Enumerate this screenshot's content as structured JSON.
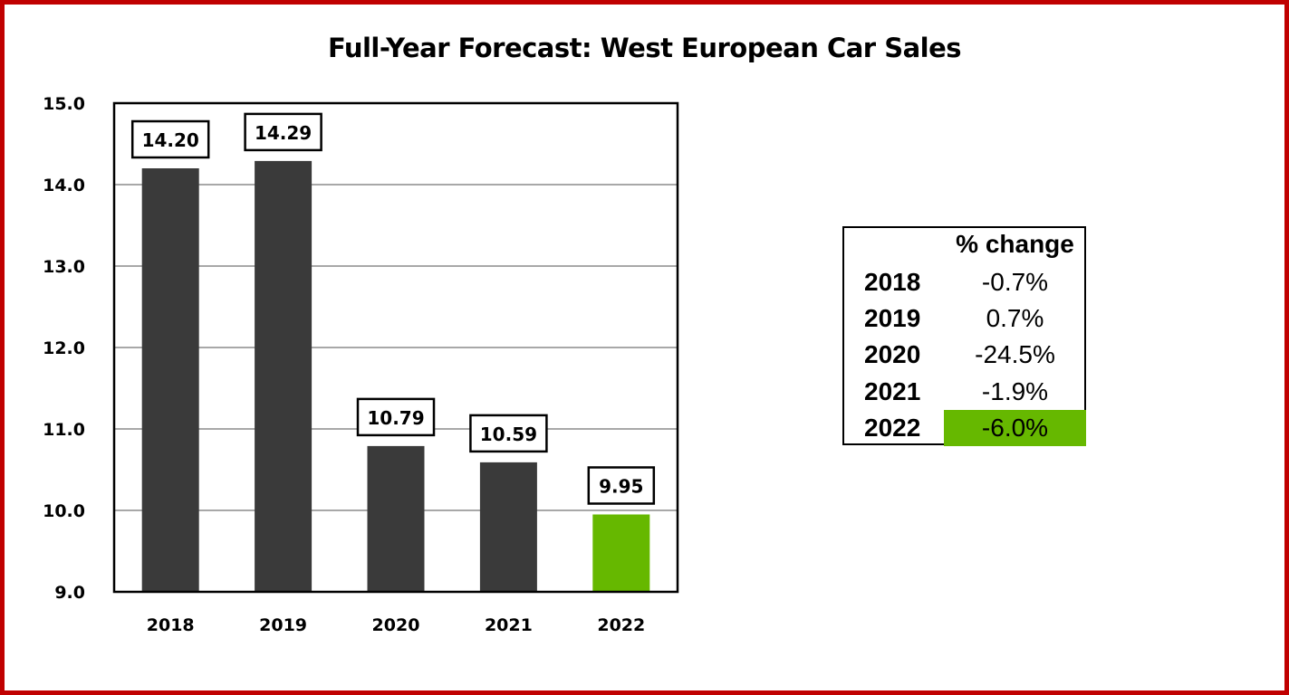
{
  "chart_data": {
    "type": "bar",
    "title": "Full-Year Forecast: West European Car Sales",
    "categories": [
      "2018",
      "2019",
      "2020",
      "2021",
      "2022"
    ],
    "values": [
      14.2,
      14.29,
      10.79,
      10.59,
      9.95
    ],
    "data_labels": [
      "14.20",
      "14.29",
      "10.79",
      "10.59",
      "9.95"
    ],
    "ylim": [
      9.0,
      15.0
    ],
    "yticks": [
      "9.0",
      "10.0",
      "11.0",
      "12.0",
      "13.0",
      "14.0",
      "15.0"
    ],
    "xlabel": "",
    "ylabel": "",
    "grid": true,
    "colors": {
      "bar": "#3a3a3a",
      "highlight": "#66b800",
      "border": "#c00000"
    },
    "highlight_index": 4
  },
  "table": {
    "header": "% change",
    "rows": [
      {
        "year": "2018",
        "change": "-0.7%"
      },
      {
        "year": "2019",
        "change": "0.7%"
      },
      {
        "year": "2020",
        "change": "-24.5%"
      },
      {
        "year": "2021",
        "change": "-1.9%"
      },
      {
        "year": "2022",
        "change": "-6.0%",
        "highlight": true
      }
    ]
  }
}
